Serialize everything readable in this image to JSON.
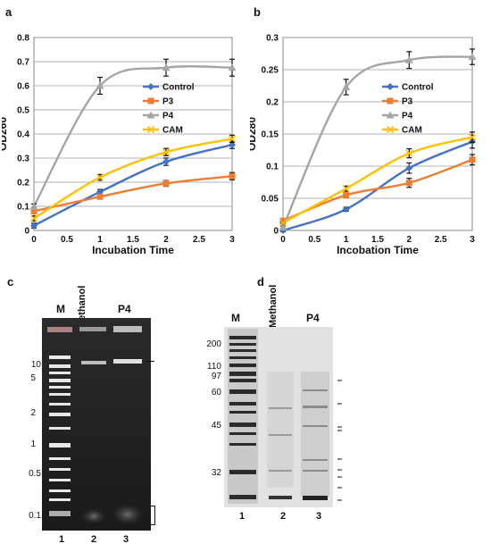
{
  "panels": {
    "a": {
      "letter": "a"
    },
    "b": {
      "letter": "b"
    },
    "c": {
      "letter": "c",
      "lane_header_M": "M",
      "lane_header_2": "Methanol",
      "lane_header_3": "P4",
      "marker_labels": [
        "10",
        "5",
        "2",
        "1",
        "0.5",
        "0.1"
      ],
      "lane_numbers": [
        "1",
        "2",
        "3"
      ]
    },
    "d": {
      "letter": "d",
      "lane_header_M": "M",
      "lane_header_2": "Methanol",
      "lane_header_3": "P4",
      "marker_labels": [
        "200",
        "110",
        "97",
        "60",
        "45",
        "32"
      ],
      "lane_numbers": [
        "1",
        "2",
        "3"
      ]
    }
  },
  "colors": {
    "control": "#4472C4",
    "p3": "#ED7D31",
    "p4": "#A5A5A5",
    "cam": "#FFC000"
  },
  "chart_data": [
    {
      "type": "line",
      "xlabel": "Incubation Time",
      "ylabel": "OD260",
      "xlim": [
        0,
        3
      ],
      "ylim": [
        0,
        0.8
      ],
      "xticks": [
        0,
        0.5,
        1,
        1.5,
        2,
        2.5,
        3
      ],
      "yticks": [
        0,
        0.1,
        0.2,
        0.3,
        0.4,
        0.5,
        0.6,
        0.7,
        0.8
      ],
      "grid": true,
      "legend": "right",
      "series": [
        {
          "name": "Control",
          "x": [
            0,
            1,
            2,
            3
          ],
          "values": [
            0.02,
            0.16,
            0.285,
            0.355
          ],
          "err": [
            0.01,
            0.01,
            0.015,
            0.015
          ]
        },
        {
          "name": "P3",
          "x": [
            0,
            1,
            2,
            3
          ],
          "values": [
            0.08,
            0.14,
            0.195,
            0.225
          ],
          "err": [
            0.01,
            0.01,
            0.012,
            0.015
          ]
        },
        {
          "name": "P4",
          "x": [
            0,
            1,
            2,
            3
          ],
          "values": [
            0.1,
            0.6,
            0.675,
            0.675
          ],
          "err": [
            0.01,
            0.035,
            0.035,
            0.035
          ]
        },
        {
          "name": "CAM",
          "x": [
            0,
            1,
            2,
            3
          ],
          "values": [
            0.05,
            0.22,
            0.325,
            0.38
          ],
          "err": [
            0.01,
            0.012,
            0.015,
            0.015
          ]
        }
      ]
    },
    {
      "type": "line",
      "xlabel": "Incobation Time",
      "ylabel": "OD280",
      "xlim": [
        0,
        3
      ],
      "ylim": [
        0,
        0.3
      ],
      "xticks": [
        0,
        0.5,
        1,
        1.5,
        2,
        2.5,
        3
      ],
      "yticks": [
        0,
        0.05,
        0.1,
        0.15,
        0.2,
        0.25,
        0.3
      ],
      "grid": true,
      "legend": "right",
      "series": [
        {
          "name": "Control",
          "x": [
            0,
            1,
            2,
            3
          ],
          "values": [
            0.0,
            0.033,
            0.097,
            0.138
          ],
          "err": [
            0.002,
            0.003,
            0.008,
            0.01
          ]
        },
        {
          "name": "P3",
          "x": [
            0,
            1,
            2,
            3
          ],
          "values": [
            0.015,
            0.055,
            0.074,
            0.11
          ],
          "err": [
            0.002,
            0.004,
            0.007,
            0.008
          ]
        },
        {
          "name": "P4",
          "x": [
            0,
            1,
            2,
            3
          ],
          "values": [
            0.005,
            0.223,
            0.265,
            0.27
          ],
          "err": [
            0.002,
            0.012,
            0.013,
            0.012
          ]
        },
        {
          "name": "CAM",
          "x": [
            0,
            1,
            2,
            3
          ],
          "values": [
            0.012,
            0.065,
            0.12,
            0.145
          ],
          "err": [
            0.002,
            0.004,
            0.007,
            0.008
          ]
        }
      ]
    }
  ]
}
